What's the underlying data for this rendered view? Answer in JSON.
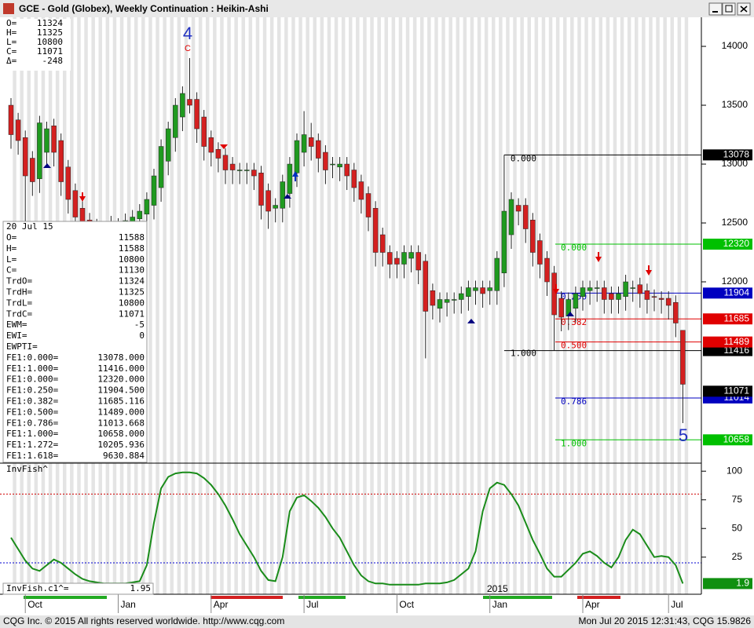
{
  "window": {
    "title": "GCE - Gold (Globex), Weekly Continuation : Heikin-Ashi",
    "status_left": "CQG Inc. © 2015 All rights reserved worldwide. http://www.cqg.com",
    "status_right": "Mon Jul 20 2015 12:31:43, CQG 15.9826"
  },
  "info_box": [
    {
      "label": "O=",
      "value": 11324
    },
    {
      "label": "H=",
      "value": 11325
    },
    {
      "label": "L=",
      "value": 10800
    },
    {
      "label": "C=",
      "value": 11071
    },
    {
      "label": "Δ=",
      "value": -248
    }
  ],
  "data_box": {
    "date": "20 Jul 15",
    "rows": [
      {
        "label": "O=",
        "value": "11588"
      },
      {
        "label": "H=",
        "value": "11588"
      },
      {
        "label": "L=",
        "value": "10800"
      },
      {
        "label": "C=",
        "value": "11130"
      },
      {
        "label": "TrdO=",
        "value": "11324"
      },
      {
        "label": "TrdH=",
        "value": "11325"
      },
      {
        "label": "TrdL=",
        "value": "10800"
      },
      {
        "label": "TrdC=",
        "value": "11071"
      },
      {
        "label": "EWM=",
        "value": "-5"
      },
      {
        "label": "EWI=",
        "value": "0"
      },
      {
        "label": "EWPTI="
      },
      {
        "label": "FE1:0.000=",
        "value": "13078.000"
      },
      {
        "label": "FE1:1.000=",
        "value": "11416.000"
      },
      {
        "label": "FE1:0.000=",
        "value": "12320.000"
      },
      {
        "label": "FE1:0.250=",
        "value": "11904.500"
      },
      {
        "label": "FE1:0.382=",
        "value": "11685.116"
      },
      {
        "label": "FE1:0.500=",
        "value": "11489.000"
      },
      {
        "label": "FE1:0.786=",
        "value": "11013.668"
      },
      {
        "label": "FE1:1.000=",
        "value": "10658.000"
      },
      {
        "label": "FE1:1.272=",
        "value": "10205.936"
      },
      {
        "label": "FE1:1.618=",
        "value": "9630.884"
      }
    ]
  },
  "chart_data": [
    {
      "type": "candlestick",
      "categories": [
        null,
        null,
        "Oct",
        null,
        null,
        null,
        null,
        null,
        null,
        null,
        null,
        null,
        null,
        null,
        null,
        "Jan",
        null,
        null,
        null,
        null,
        null,
        null,
        null,
        null,
        null,
        null,
        null,
        null,
        "Apr",
        null,
        null,
        null,
        null,
        null,
        null,
        null,
        null,
        null,
        null,
        null,
        null,
        "Jul",
        null,
        null,
        null,
        null,
        null,
        null,
        null,
        null,
        null,
        null,
        null,
        null,
        "Oct",
        null,
        null,
        null,
        null,
        null,
        null,
        null,
        null,
        null,
        null,
        null,
        null,
        "Jan",
        null,
        null,
        null,
        null,
        null,
        null,
        null,
        null,
        null,
        null,
        null,
        null,
        "Apr",
        null,
        null,
        null,
        null,
        null,
        null,
        null,
        null,
        null,
        null,
        null,
        "Jul",
        null,
        null
      ],
      "open": [
        13500,
        13375,
        13225,
        13050,
        12875,
        13100,
        13325,
        13200,
        12975,
        12775,
        12625,
        12525,
        12475,
        12425,
        12425,
        12475,
        12490,
        12500,
        12535,
        12575,
        12650,
        12800,
        13025,
        13225,
        13400,
        13550,
        13550,
        13400,
        13225,
        13125,
        13075,
        13000,
        12950,
        12950,
        12950,
        12925,
        12775,
        12625,
        12625,
        12750,
        12925,
        13100,
        13225,
        13200,
        13100,
        13000,
        12975,
        13000,
        12950,
        12850,
        12750,
        12625,
        12400,
        12250,
        12200,
        12150,
        12200,
        12250,
        12175,
        11925,
        11775,
        11825,
        11850,
        11850,
        11875,
        11925,
        11950,
        11925,
        11925,
        12075,
        12400,
        12650,
        12650,
        12525,
        12350,
        12200,
        12075,
        11860,
        11710,
        11775,
        11875,
        11925,
        11950,
        11950,
        11900,
        11850,
        11875,
        11950,
        11975,
        11925,
        11875,
        11860,
        11860,
        11825,
        11588
      ],
      "high": [
        13560,
        13435,
        13285,
        13110,
        13410,
        13360,
        13385,
        13260,
        13035,
        12835,
        12685,
        12585,
        12535,
        12510,
        12560,
        12540,
        12580,
        12610,
        12660,
        12760,
        12960,
        13210,
        13360,
        13560,
        13660,
        13900,
        13610,
        13460,
        13285,
        13185,
        13135,
        13060,
        13010,
        13010,
        13010,
        12985,
        12835,
        12710,
        12910,
        13060,
        13260,
        13450,
        13350,
        13260,
        13160,
        13060,
        13060,
        13060,
        13010,
        12910,
        12810,
        12685,
        12460,
        12310,
        12260,
        12310,
        12310,
        12310,
        12235,
        11985,
        11910,
        11910,
        11910,
        11960,
        12010,
        12010,
        12010,
        12010,
        12260,
        13078,
        12760,
        12710,
        12710,
        12585,
        12410,
        12260,
        12135,
        11920,
        11910,
        11960,
        12010,
        12010,
        12010,
        12010,
        11960,
        11960,
        12060,
        12010,
        12035,
        11985,
        11935,
        11920,
        11920,
        11885,
        11588
      ],
      "low": [
        13130,
        13080,
        12500,
        12730,
        12755,
        12980,
        12980,
        12730,
        12580,
        12430,
        12380,
        12330,
        12280,
        12305,
        12305,
        12355,
        12370,
        12380,
        12415,
        12455,
        12530,
        12680,
        12905,
        13105,
        13280,
        13430,
        13180,
        13030,
        12980,
        12930,
        12830,
        12830,
        12830,
        12830,
        12780,
        12530,
        12450,
        12505,
        12505,
        12630,
        12805,
        12980,
        13030,
        12930,
        12830,
        12880,
        12855,
        12780,
        12680,
        12580,
        12430,
        12130,
        12130,
        12030,
        12030,
        12030,
        12080,
        11980,
        11350,
        11680,
        11655,
        11705,
        11730,
        11730,
        11755,
        11805,
        11780,
        11805,
        11805,
        11955,
        12280,
        12480,
        12330,
        12130,
        12030,
        11880,
        11416,
        11580,
        11590,
        11655,
        11755,
        11805,
        11830,
        11730,
        11730,
        11730,
        11755,
        11830,
        11780,
        11730,
        11750,
        11730,
        11680,
        11530,
        10800
      ],
      "close": [
        13250,
        13200,
        12900,
        12850,
        13350,
        13300,
        13100,
        12850,
        12700,
        12550,
        12500,
        12450,
        12400,
        12450,
        12500,
        12480,
        12520,
        12550,
        12600,
        12700,
        12900,
        13150,
        13300,
        13500,
        13600,
        13500,
        13300,
        13150,
        13100,
        13050,
        12950,
        12950,
        12950,
        12950,
        12900,
        12650,
        12600,
        12650,
        12850,
        13000,
        13200,
        13250,
        13150,
        13050,
        12950,
        13000,
        13000,
        12900,
        12800,
        12700,
        12550,
        12250,
        12250,
        12150,
        12150,
        12250,
        12250,
        12100,
        11750,
        11800,
        11850,
        11850,
        11850,
        11900,
        11950,
        11950,
        11900,
        11950,
        12200,
        12600,
        12700,
        12600,
        12450,
        12250,
        12150,
        12000,
        11720,
        11700,
        11850,
        11900,
        11950,
        11950,
        11950,
        11850,
        11850,
        11900,
        12000,
        11950,
        11900,
        11850,
        11870,
        11850,
        11800,
        11650,
        11130
      ],
      "up_color": "#1f9a1f",
      "down_color": "#d42020",
      "ylim": [
        10460,
        14247
      ],
      "yticks": [
        14000,
        13500,
        13000,
        12500,
        12000
      ],
      "grid": false,
      "year_label": "2015",
      "annotations": [
        "4",
        "C",
        "5"
      ],
      "fib_1": [
        {
          "value": 13078,
          "label": "0.000",
          "color": "#000000"
        },
        {
          "value": 11416,
          "label": "1.000",
          "color": "#000000"
        }
      ],
      "fib_2": [
        {
          "value": 12320,
          "label": "0.000",
          "axis_label": "12320",
          "color": "#00c000"
        },
        {
          "value": 11904.5,
          "label": "0.250",
          "axis_label": "11904",
          "color": "#0000c0"
        },
        {
          "value": 11685.116,
          "label": "0.382",
          "axis_label": "11685",
          "color": "#e00000"
        },
        {
          "value": 11489,
          "label": "0.500",
          "axis_label": "11489",
          "color": "#e00000"
        },
        {
          "value": 11013.668,
          "label": "0.786",
          "axis_label": "11014",
          "color": "#0000c0"
        },
        {
          "value": 10658,
          "label": "1.000",
          "axis_label": "10658",
          "color": "#00c000"
        }
      ],
      "last_trade": 11071
    },
    {
      "type": "line",
      "title": "InvFish^",
      "legend": "InvFish.c1^=",
      "color": "#1a8c1a",
      "values": [
        42,
        32,
        22,
        15,
        13,
        18,
        23,
        20,
        15,
        10,
        6,
        4,
        3,
        2,
        2,
        2,
        2,
        3,
        4,
        18,
        55,
        85,
        95,
        98,
        99,
        99,
        98,
        94,
        88,
        80,
        70,
        58,
        45,
        35,
        25,
        13,
        5,
        4,
        25,
        65,
        77,
        79,
        74,
        68,
        60,
        50,
        42,
        30,
        18,
        9,
        4,
        2,
        2,
        1,
        1,
        1,
        1,
        1,
        2,
        2,
        2,
        3,
        5,
        10,
        15,
        30,
        65,
        85,
        90,
        88,
        80,
        70,
        55,
        40,
        28,
        15,
        8,
        8,
        14,
        20,
        28,
        30,
        26,
        20,
        16,
        25,
        40,
        49,
        45,
        35,
        25,
        26,
        25,
        18,
        1.95
      ],
      "axis_value_label": "1.9",
      "ylim": [
        -6,
        107
      ],
      "yticks": [
        100,
        75,
        50,
        25
      ],
      "ref_lines": [
        {
          "value": 80,
          "color": "#d00000"
        },
        {
          "value": 20,
          "color": "#0000d0"
        }
      ]
    }
  ]
}
